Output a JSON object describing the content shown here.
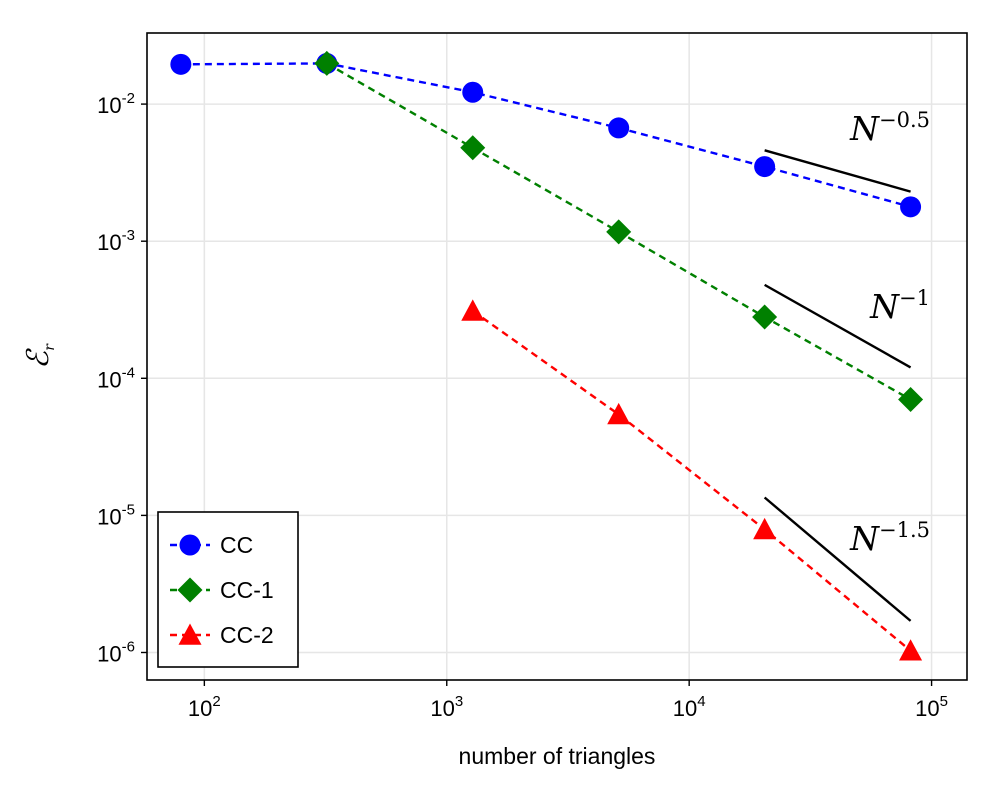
{
  "chart_data": {
    "type": "line",
    "xlabel": "number of triangles",
    "ylabel": "ℰ",
    "ylabel_sub": "r",
    "xscale": "log",
    "yscale": "log",
    "xlim": [
      58,
      140000
    ],
    "ylim": [
      6.3e-07,
      0.033
    ],
    "grid": true,
    "legend_position": "bottom-left",
    "xticks": [
      {
        "value": 100,
        "base": "10",
        "exp": "2"
      },
      {
        "value": 1000,
        "base": "10",
        "exp": "3"
      },
      {
        "value": 10000,
        "base": "10",
        "exp": "4"
      },
      {
        "value": 100000,
        "base": "10",
        "exp": "5"
      }
    ],
    "yticks": [
      {
        "value": 1e-06,
        "base": "10",
        "exp": "-6"
      },
      {
        "value": 1e-05,
        "base": "10",
        "exp": "-5"
      },
      {
        "value": 0.0001,
        "base": "10",
        "exp": "-4"
      },
      {
        "value": 0.001,
        "base": "10",
        "exp": "-3"
      },
      {
        "value": 0.01,
        "base": "10",
        "exp": "-2"
      }
    ],
    "series": [
      {
        "name": "CC",
        "color": "#0000ff",
        "marker": "circle",
        "x": [
          80,
          320,
          1280,
          5120,
          20480,
          81920
        ],
        "y": [
          0.0195,
          0.0198,
          0.0122,
          0.0067,
          0.0035,
          0.00178
        ]
      },
      {
        "name": "CC-1",
        "color": "#008000",
        "marker": "diamond",
        "x": [
          320,
          1280,
          5120,
          20480,
          81920
        ],
        "y": [
          0.0198,
          0.0048,
          0.00117,
          0.00028,
          7e-05
        ]
      },
      {
        "name": "CC-2",
        "color": "#ff0000",
        "marker": "triangle",
        "x": [
          1280,
          5120,
          20480,
          81920
        ],
        "y": [
          0.00031,
          5.45e-05,
          7.9e-06,
          1.03e-06
        ]
      }
    ],
    "reference_lines": [
      {
        "label_base": "N",
        "label_exp": "−0.5",
        "x": [
          20480,
          81920
        ],
        "y": [
          0.0046,
          0.0023
        ]
      },
      {
        "label_base": "N",
        "label_exp": "−1",
        "x": [
          20480,
          81920
        ],
        "y": [
          0.00048,
          0.00012
        ]
      },
      {
        "label_base": "N",
        "label_exp": "−1.5",
        "x": [
          20480,
          81920
        ],
        "y": [
          1.35e-05,
          1.7e-06
        ]
      }
    ]
  },
  "colors": {
    "grid": "#e6e6e6",
    "frame": "#000000",
    "reference": "#000000"
  }
}
